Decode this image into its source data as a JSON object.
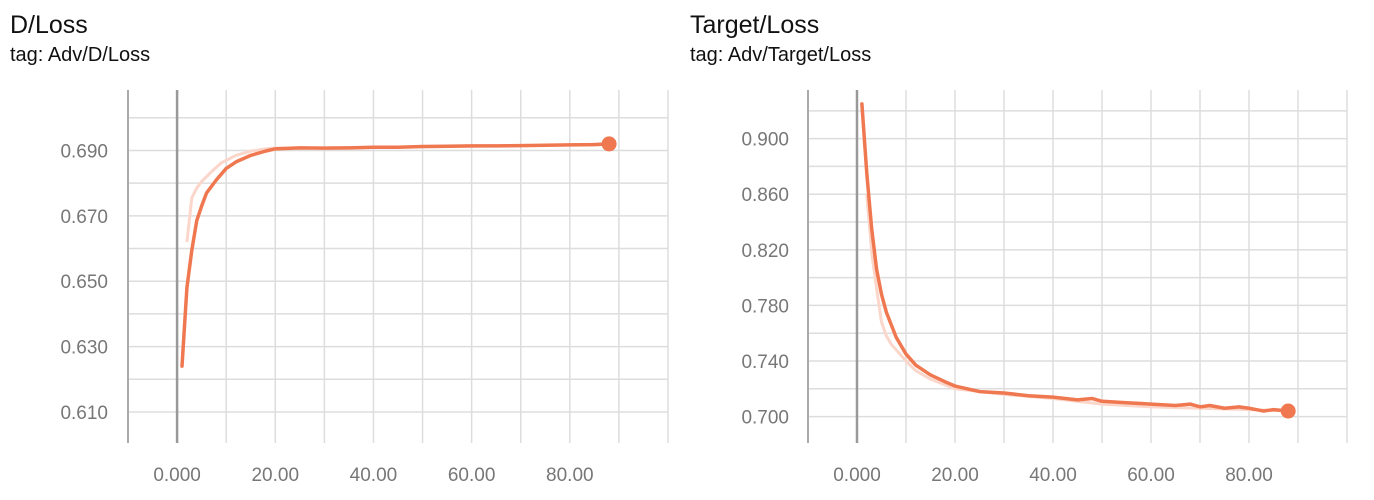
{
  "chart_data": [
    {
      "type": "line",
      "title": "D/Loss",
      "subtitle": "tag: Adv/D/Loss",
      "xlabel": "",
      "ylabel": "",
      "x_ticks": [
        "0.000",
        "20.00",
        "40.00",
        "60.00",
        "80.00"
      ],
      "y_ticks": [
        "0.690",
        "0.670",
        "0.650",
        "0.630",
        "0.610"
      ],
      "xlim": [
        -10,
        100
      ],
      "ylim": [
        0.6005,
        0.7085
      ],
      "grid": true,
      "legend": "none",
      "colors": {
        "main": "#f07850",
        "raw": "#fbd6ca",
        "axis": "#999999",
        "grid": "#dddddd"
      },
      "series": [
        {
          "values_x": [
            1,
            2,
            3,
            4,
            5,
            6,
            8,
            10,
            12,
            15,
            18,
            20,
            25,
            30,
            35,
            40,
            45,
            50,
            55,
            60,
            65,
            70,
            75,
            80,
            85,
            88
          ],
          "values_y": [
            0.624,
            0.648,
            0.6595,
            0.6685,
            0.673,
            0.677,
            0.681,
            0.6845,
            0.6865,
            0.6885,
            0.6898,
            0.6905,
            0.6908,
            0.6907,
            0.6908,
            0.691,
            0.691,
            0.6912,
            0.6913,
            0.6914,
            0.6914,
            0.6915,
            0.6916,
            0.6917,
            0.6918,
            0.692
          ]
        }
      ],
      "raw": {
        "values_x": [
          2,
          3,
          4,
          5,
          7,
          9,
          12,
          15,
          18,
          20,
          25,
          30,
          40,
          50,
          60,
          70,
          80,
          88
        ],
        "values_y": [
          0.662,
          0.6755,
          0.6785,
          0.6805,
          0.6835,
          0.6862,
          0.6885,
          0.6898,
          0.6905,
          0.6907,
          0.6908,
          0.6908,
          0.6909,
          0.6911,
          0.6913,
          0.6915,
          0.6917,
          0.692
        ]
      }
    },
    {
      "type": "line",
      "title": "Target/Loss",
      "subtitle": "tag: Adv/Target/Loss",
      "xlabel": "",
      "ylabel": "",
      "x_ticks": [
        "0.000",
        "20.00",
        "40.00",
        "60.00",
        "80.00"
      ],
      "y_ticks": [
        "0.900",
        "0.860",
        "0.820",
        "0.780",
        "0.740",
        "0.700"
      ],
      "xlim": [
        -10,
        100
      ],
      "ylim": [
        0.681,
        0.935
      ],
      "grid": true,
      "legend": "none",
      "colors": {
        "main": "#f07850",
        "raw": "#fbd6ca",
        "axis": "#999999",
        "grid": "#dddddd"
      },
      "series": [
        {
          "values_x": [
            1,
            2,
            3,
            4,
            5,
            6,
            7,
            8,
            10,
            12,
            15,
            18,
            20,
            25,
            30,
            35,
            40,
            45,
            48,
            50,
            55,
            60,
            65,
            68,
            70,
            72,
            75,
            78,
            80,
            83,
            85,
            88
          ],
          "values_y": [
            0.925,
            0.875,
            0.835,
            0.806,
            0.788,
            0.775,
            0.766,
            0.757,
            0.745,
            0.737,
            0.73,
            0.725,
            0.722,
            0.718,
            0.717,
            0.715,
            0.714,
            0.712,
            0.713,
            0.711,
            0.71,
            0.709,
            0.708,
            0.709,
            0.707,
            0.708,
            0.706,
            0.707,
            0.706,
            0.704,
            0.705,
            0.704
          ]
        }
      ],
      "raw": {
        "values_x": [
          2,
          3,
          4,
          5,
          6,
          7,
          8,
          10,
          12,
          15,
          20,
          30,
          40,
          50,
          60,
          70,
          80,
          88
        ],
        "values_y": [
          0.86,
          0.818,
          0.792,
          0.768,
          0.758,
          0.752,
          0.748,
          0.74,
          0.733,
          0.727,
          0.72,
          0.716,
          0.713,
          0.709,
          0.707,
          0.706,
          0.705,
          0.704
        ]
      }
    }
  ]
}
